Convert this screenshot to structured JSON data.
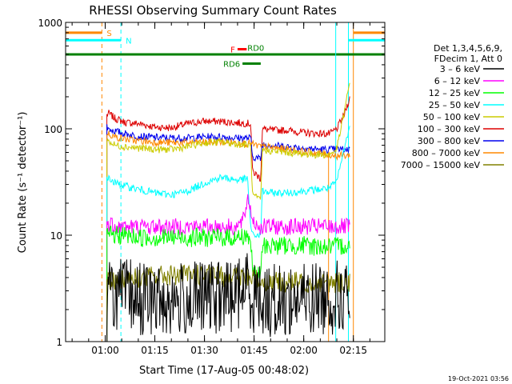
{
  "chart_data": {
    "type": "line",
    "title": "RHESSI Observing Summary Count Rates",
    "xlabel": "Start Time (17-Aug-05 00:48:02)",
    "ylabel": "Count Rate (s⁻¹ detector⁻¹)",
    "yscale": "log",
    "ylim": [
      1,
      1000
    ],
    "xlim": [
      "00:48:02",
      "02:24:30"
    ],
    "x_ticks": [
      "01:00",
      "01:15",
      "01:30",
      "01:45",
      "02:00",
      "02:15"
    ],
    "y_ticks": [
      "1",
      "10",
      "100",
      "1000"
    ],
    "timestamp": "19-Oct-2021 03:56",
    "legend": {
      "placement": "right",
      "header": [
        "Det 1,3,4,5,6,9,",
        "FDecim 1, Att 0"
      ],
      "entries": [
        {
          "label": "3 – 6 keV",
          "color": "#000000"
        },
        {
          "label": "6 – 12 keV",
          "color": "#ff00ff"
        },
        {
          "label": "12 – 25 keV",
          "color": "#00ff00"
        },
        {
          "label": "25 – 50 keV",
          "color": "#00ffff"
        },
        {
          "label": "50 – 100 keV",
          "color": "#cccc00"
        },
        {
          "label": "100 – 300 keV",
          "color": "#dd0000"
        },
        {
          "label": "300 – 800 keV",
          "color": "#0000ee"
        },
        {
          "label": "800 – 7000 keV",
          "color": "#ff8800"
        },
        {
          "label": "7000 – 15000 keV",
          "color": "#808000"
        }
      ]
    },
    "flags": [
      {
        "label": "S",
        "color": "#ff8800",
        "intervals": [
          [
            "00:48:02",
            "00:59:00"
          ],
          [
            "02:15:00",
            "02:24:30"
          ]
        ],
        "rate": 800
      },
      {
        "label": "N",
        "color": "#00ffff",
        "intervals": [
          [
            "00:48:02",
            "01:04:45"
          ],
          [
            "02:13:30",
            "02:24:30"
          ]
        ],
        "rate": 680
      },
      {
        "label": "F",
        "color": "#ff0000",
        "intervals": [
          [
            "01:40:00",
            "01:42:45"
          ]
        ],
        "rate": 560
      },
      {
        "label": "RD0",
        "color": "#008000",
        "intervals": [
          [
            "00:48:02",
            "02:24:30"
          ]
        ],
        "rate": 500
      },
      {
        "label": "RD6",
        "color": "#008000",
        "intervals": [
          [
            "01:41:30",
            "01:47:00"
          ]
        ],
        "rate": 410
      }
    ],
    "series": [
      {
        "name": "100 – 300 keV",
        "color": "#dd0000",
        "x": [
          "01:00:30",
          "01:01:00",
          "01:03:00",
          "01:06:00",
          "01:10:00",
          "01:15:00",
          "01:20:00",
          "01:25:00",
          "01:30:00",
          "01:35:00",
          "01:40:00",
          "01:44:00",
          "01:44:30",
          "01:47:00",
          "01:47:30",
          "01:50:00",
          "01:55:00",
          "02:00:00",
          "02:05:00",
          "02:08:00",
          "02:10:00",
          "02:12:00",
          "02:14:00"
        ],
        "y": [
          135,
          140,
          125,
          115,
          112,
          104,
          102,
          112,
          118,
          117,
          114,
          112,
          40,
          34,
          100,
          97,
          97,
          92,
          90,
          90,
          100,
          130,
          200
        ]
      },
      {
        "name": "300 – 800 keV",
        "color": "#0000ee",
        "x": [
          "01:00:30",
          "01:01:00",
          "01:03:00",
          "01:06:00",
          "01:10:00",
          "01:15:00",
          "01:20:00",
          "01:25:00",
          "01:30:00",
          "01:35:00",
          "01:40:00",
          "01:44:00",
          "01:44:30",
          "01:47:00",
          "01:47:30",
          "01:50:00",
          "01:55:00",
          "02:00:00",
          "02:05:00",
          "02:08:00",
          "02:10:00",
          "02:12:00",
          "02:14:00"
        ],
        "y": [
          105,
          100,
          95,
          90,
          85,
          83,
          82,
          82,
          84,
          84,
          82,
          82,
          55,
          52,
          72,
          70,
          68,
          66,
          64,
          64,
          64,
          64,
          64
        ]
      },
      {
        "name": "800 – 7000 keV",
        "color": "#ff8800",
        "x": [
          "01:00:30",
          "01:01:00",
          "01:03:00",
          "01:06:00",
          "01:10:00",
          "01:15:00",
          "01:20:00",
          "01:25:00",
          "01:30:00",
          "01:35:00",
          "01:40:00",
          "01:44:00",
          "01:47:00",
          "01:50:00",
          "01:55:00",
          "02:00:00",
          "02:05:00",
          "02:08:00",
          "02:10:00",
          "02:12:00",
          "02:14:00"
        ],
        "y": [
          92,
          90,
          84,
          80,
          77,
          75,
          74,
          74,
          75,
          75,
          74,
          72,
          68,
          67,
          64,
          61,
          59,
          57,
          56,
          56,
          56
        ]
      },
      {
        "name": "50 – 100 keV",
        "color": "#cccc00",
        "x": [
          "01:00:30",
          "01:01:00",
          "01:03:00",
          "01:06:00",
          "01:10:00",
          "01:15:00",
          "01:20:00",
          "01:25:00",
          "01:30:00",
          "01:35:00",
          "01:40:00",
          "01:44:00",
          "01:44:30",
          "01:47:00",
          "01:47:30",
          "01:50:00",
          "01:55:00",
          "02:00:00",
          "02:05:00",
          "02:08:00",
          "02:10:00",
          "02:12:00",
          "02:14:00"
        ],
        "y": [
          80,
          76,
          70,
          68,
          66,
          64,
          64,
          68,
          74,
          75,
          72,
          70,
          24,
          21,
          63,
          62,
          60,
          58,
          57,
          57,
          65,
          130,
          280
        ]
      },
      {
        "name": "25 – 50 keV",
        "color": "#00ffff",
        "x": [
          "01:00:30",
          "01:01:00",
          "01:03:00",
          "01:06:00",
          "01:10:00",
          "01:15:00",
          "01:20:00",
          "01:25:00",
          "01:30:00",
          "01:35:00",
          "01:40:00",
          "01:43:00",
          "01:44:00",
          "01:44:30",
          "01:47:00",
          "01:47:30",
          "01:50:00",
          "01:55:00",
          "02:00:00",
          "02:05:00",
          "02:08:00",
          "02:10:00",
          "02:12:00",
          "02:14:00"
        ],
        "y": [
          36,
          34,
          31,
          29,
          27,
          25,
          24,
          26,
          31,
          35,
          33,
          34,
          12,
          10,
          10,
          26,
          25,
          25,
          26,
          27,
          28,
          32,
          60,
          110
        ]
      },
      {
        "name": "6 – 12 keV",
        "color": "#ff00ff",
        "x": [
          "01:00:30",
          "01:01:00",
          "01:05:00",
          "01:10:00",
          "01:15:00",
          "01:20:00",
          "01:25:00",
          "01:30:00",
          "01:35:00",
          "01:40:00",
          "01:42:00",
          "01:43:00",
          "01:44:00",
          "01:45:00",
          "01:47:00",
          "01:47:30",
          "01:50:00",
          "01:55:00",
          "02:00:00",
          "02:05:00",
          "02:10:00",
          "02:12:00",
          "02:14:00"
        ],
        "y": [
          12,
          13,
          12,
          12,
          12,
          12,
          12,
          12,
          12,
          12,
          14,
          23,
          17,
          13,
          12,
          12,
          12,
          12,
          12,
          12,
          12,
          12,
          12
        ]
      },
      {
        "name": "12 – 25 keV",
        "color": "#00ff00",
        "x": [
          "01:00:30",
          "01:01:00",
          "01:05:00",
          "01:10:00",
          "01:15:00",
          "01:20:00",
          "01:25:00",
          "01:30:00",
          "01:35:00",
          "01:40:00",
          "01:43:00",
          "01:44:00",
          "01:44:30",
          "01:47:00",
          "01:47:30",
          "01:50:00",
          "01:55:00",
          "02:00:00",
          "02:05:00",
          "02:10:00",
          "02:12:00",
          "02:14:00"
        ],
        "y": [
          10,
          10,
          10,
          9.5,
          9.5,
          9.5,
          9.5,
          9.5,
          9.5,
          9.5,
          10,
          9,
          4.5,
          4.0,
          8,
          8,
          8,
          8,
          7.8,
          7.8,
          8,
          8
        ]
      },
      {
        "name": "7000 – 15000 keV",
        "color": "#808000",
        "x": [
          "01:00:30",
          "01:05:00",
          "01:10:00",
          "01:15:00",
          "01:20:00",
          "01:25:00",
          "01:30:00",
          "01:35:00",
          "01:40:00",
          "01:45:00",
          "01:50:00",
          "01:55:00",
          "02:00:00",
          "02:05:00",
          "02:10:00",
          "02:14:00"
        ],
        "y": [
          3.8,
          3.9,
          4.0,
          4.1,
          4.2,
          4.2,
          4.2,
          4.1,
          4.1,
          3.9,
          3.6,
          3.6,
          3.6,
          3.6,
          3.6,
          3.6
        ]
      },
      {
        "name": "3 – 6 keV",
        "color": "#000000",
        "x": [
          "01:00:30",
          "01:05:00",
          "01:10:00",
          "01:15:00",
          "01:20:00",
          "01:25:00",
          "01:30:00",
          "01:35:00",
          "01:40:00",
          "01:43:00",
          "01:44:00",
          "01:45:00",
          "01:50:00",
          "01:55:00",
          "02:00:00",
          "02:05:00",
          "02:10:00",
          "02:14:00"
        ],
        "y": [
          2.8,
          2.8,
          2.6,
          2.4,
          2.4,
          2.5,
          2.6,
          2.6,
          2.8,
          3.5,
          2.8,
          2.7,
          2.4,
          2.4,
          2.5,
          2.6,
          2.6,
          2.6
        ]
      }
    ]
  }
}
